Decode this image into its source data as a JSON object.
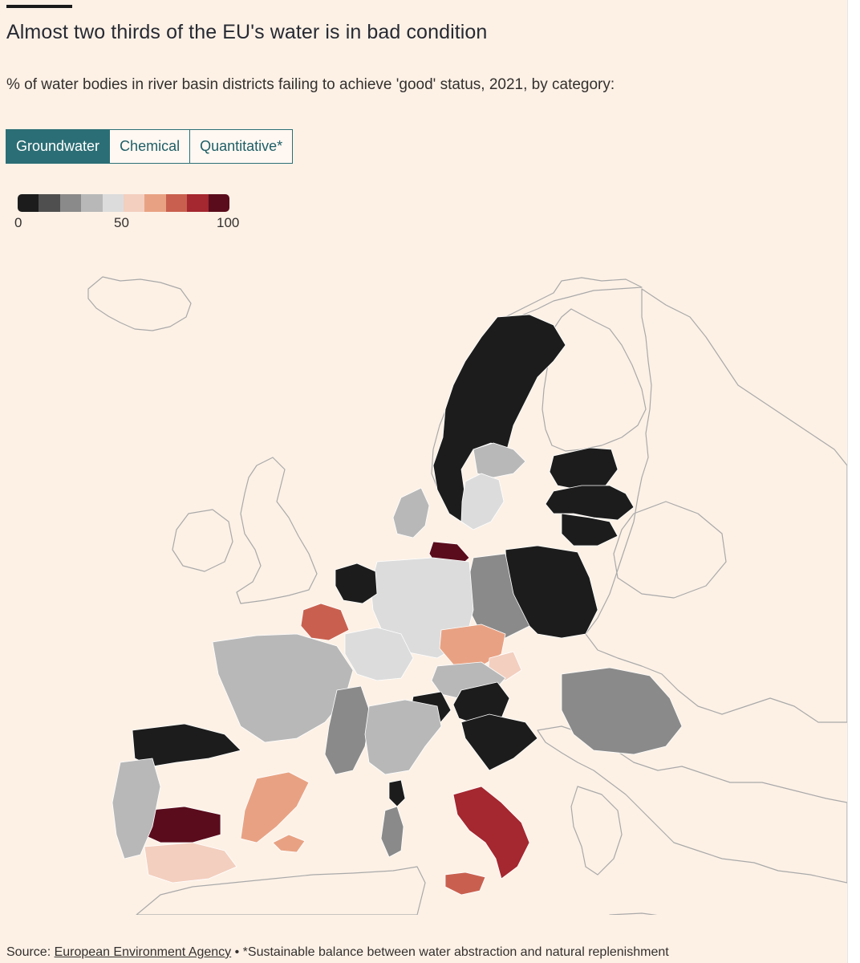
{
  "header": {
    "title": "Almost two thirds of the EU's water is in bad condition",
    "subtitle": "% of water bodies in river basin districts failing to achieve 'good' status, 2021, by category:"
  },
  "tabs": [
    {
      "label": "Groundwater",
      "active": true
    },
    {
      "label": "Chemical",
      "active": false
    },
    {
      "label": "Quantitative*",
      "active": false
    }
  ],
  "legend": {
    "colors": [
      "#1c1c1c",
      "#4f4f4f",
      "#8a8a8a",
      "#b8b8b8",
      "#dcdcdc",
      "#f3cfbf",
      "#e8a283",
      "#c9604f",
      "#a5272f",
      "#5a0c1c"
    ],
    "min_label": "0",
    "mid_label": "50",
    "max_label": "100"
  },
  "map_regions": [
    {
      "region": "Sweden (north & central)",
      "value": 5
    },
    {
      "region": "Sweden (south-east)",
      "value": 35
    },
    {
      "region": "Sweden (south)",
      "value": 45
    },
    {
      "region": "Estonia",
      "value": 5
    },
    {
      "region": "Latvia",
      "value": 5
    },
    {
      "region": "Lithuania",
      "value": 5
    },
    {
      "region": "Poland (east)",
      "value": 5
    },
    {
      "region": "Poland (west)",
      "value": 25
    },
    {
      "region": "Denmark",
      "value": 35
    },
    {
      "region": "Germany (north-east)",
      "value": 95
    },
    {
      "region": "Germany",
      "value": 45
    },
    {
      "region": "Netherlands",
      "value": 5
    },
    {
      "region": "Belgium (Flanders)",
      "value": 75
    },
    {
      "region": "France (north-east)",
      "value": 45
    },
    {
      "region": "France (west)",
      "value": 35
    },
    {
      "region": "France (Rhône)",
      "value": 25
    },
    {
      "region": "Czechia",
      "value": 65
    },
    {
      "region": "Slovakia",
      "value": 55
    },
    {
      "region": "Austria",
      "value": 35
    },
    {
      "region": "Hungary",
      "value": 5
    },
    {
      "region": "Slovenia",
      "value": 5
    },
    {
      "region": "Croatia",
      "value": 5
    },
    {
      "region": "Romania",
      "value": 25
    },
    {
      "region": "Italy (north)",
      "value": 35
    },
    {
      "region": "Italy (south)",
      "value": 85
    },
    {
      "region": "Sicily",
      "value": 75
    },
    {
      "region": "Sardinia",
      "value": 25
    },
    {
      "region": "Corsica",
      "value": 5
    },
    {
      "region": "Spain (north-west)",
      "value": 5
    },
    {
      "region": "Spain (Guadalquivir)",
      "value": 95
    },
    {
      "region": "Spain (south)",
      "value": 55
    },
    {
      "region": "Spain (east)",
      "value": 65
    },
    {
      "region": "Balearic Islands",
      "value": 65
    },
    {
      "region": "Portugal",
      "value": 35
    }
  ],
  "footer": {
    "source_prefix": "Source: ",
    "source_link": "European Environment Agency",
    "note": " • *Sustainable balance between water abstraction and natural replenishment"
  }
}
